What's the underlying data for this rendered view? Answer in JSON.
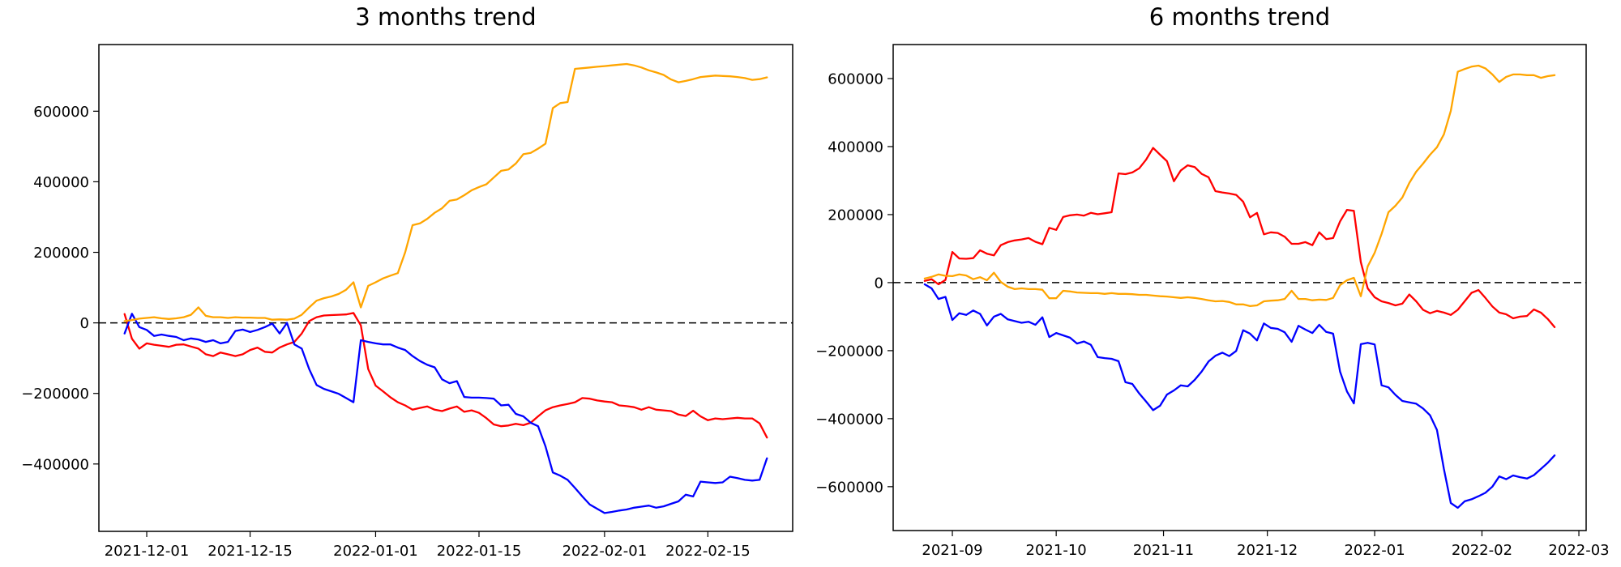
{
  "figure": {
    "background": "#ffffff",
    "text_color": "#000000"
  },
  "chart_data": [
    {
      "type": "line",
      "title": "3 months trend",
      "grid": false,
      "legend": null,
      "zero_line": {
        "style": "dashed",
        "color": "#000000",
        "y": 0
      },
      "ylim": [
        -591000,
        789000
      ],
      "y_ticks": [
        600000,
        400000,
        200000,
        0,
        -200000,
        -400000
      ],
      "x_ticks": [
        "2021-12-01",
        "2021-12-15",
        "2022-01-01",
        "2022-01-15",
        "2022-02-01",
        "2022-02-15"
      ],
      "x": [
        "2021-11-28",
        "2021-11-29",
        "2021-11-30",
        "2021-12-01",
        "2021-12-02",
        "2021-12-03",
        "2021-12-04",
        "2021-12-05",
        "2021-12-06",
        "2021-12-07",
        "2021-12-08",
        "2021-12-09",
        "2021-12-10",
        "2021-12-11",
        "2021-12-12",
        "2021-12-13",
        "2021-12-14",
        "2021-12-15",
        "2021-12-16",
        "2021-12-17",
        "2021-12-18",
        "2021-12-19",
        "2021-12-20",
        "2021-12-21",
        "2021-12-22",
        "2021-12-23",
        "2021-12-24",
        "2021-12-25",
        "2021-12-26",
        "2021-12-27",
        "2021-12-28",
        "2021-12-29",
        "2021-12-30",
        "2021-12-31",
        "2022-01-01",
        "2022-01-02",
        "2022-01-03",
        "2022-01-04",
        "2022-01-05",
        "2022-01-06",
        "2022-01-07",
        "2022-01-08",
        "2022-01-09",
        "2022-01-10",
        "2022-01-11",
        "2022-01-12",
        "2022-01-13",
        "2022-01-14",
        "2022-01-15",
        "2022-01-16",
        "2022-01-17",
        "2022-01-18",
        "2022-01-19",
        "2022-01-20",
        "2022-01-21",
        "2022-01-22",
        "2022-01-23",
        "2022-01-24",
        "2022-01-25",
        "2022-01-26",
        "2022-01-27",
        "2022-01-28",
        "2022-01-29",
        "2022-01-30",
        "2022-01-31",
        "2022-02-01",
        "2022-02-02",
        "2022-02-03",
        "2022-02-04",
        "2022-02-05",
        "2022-02-06",
        "2022-02-07",
        "2022-02-08",
        "2022-02-09",
        "2022-02-10",
        "2022-02-11",
        "2022-02-12",
        "2022-02-13",
        "2022-02-14",
        "2022-02-15",
        "2022-02-16",
        "2022-02-17",
        "2022-02-18",
        "2022-02-19",
        "2022-02-20",
        "2022-02-21",
        "2022-02-22",
        "2022-02-23"
      ],
      "series": [
        {
          "name": "red",
          "color": "#ff0000",
          "values": [
            25000,
            -45000,
            -73000,
            -58000,
            -62000,
            -65000,
            -68000,
            -62000,
            -61000,
            -67000,
            -73000,
            -89000,
            -94000,
            -84000,
            -89000,
            -94000,
            -89000,
            -77000,
            -70000,
            -82000,
            -84000,
            -70000,
            -61000,
            -54000,
            -30000,
            5000,
            16000,
            21000,
            22000,
            23000,
            24000,
            28000,
            -7000,
            -131000,
            -178000,
            -194000,
            -211000,
            -225000,
            -234000,
            -246000,
            -241000,
            -237000,
            -246000,
            -250000,
            -243000,
            -237000,
            -252000,
            -248000,
            -255000,
            -270000,
            -288000,
            -293000,
            -291000,
            -286000,
            -290000,
            -283000,
            -265000,
            -248000,
            -239000,
            -234000,
            -230000,
            -225000,
            -213000,
            -215000,
            -220000,
            -223000,
            -225000,
            -234000,
            -236000,
            -239000,
            -246000,
            -239000,
            -246000,
            -248000,
            -250000,
            -260000,
            -264000,
            -249000,
            -265000,
            -276000,
            -271000,
            -273000,
            -271000,
            -269000,
            -271000,
            -271000,
            -285000,
            -325000
          ]
        },
        {
          "name": "blue",
          "color": "#0000ff",
          "values": [
            -30000,
            26000,
            -12000,
            -20000,
            -37000,
            -33000,
            -37000,
            -40000,
            -49000,
            -44000,
            -47000,
            -54000,
            -49000,
            -58000,
            -54000,
            -23000,
            -19000,
            -26000,
            -20000,
            -12000,
            -2000,
            -30000,
            0,
            -61000,
            -73000,
            -131000,
            -176000,
            -187000,
            -194000,
            -201000,
            -213000,
            -225000,
            -49000,
            -54000,
            -58000,
            -61000,
            -61000,
            -70000,
            -77000,
            -94000,
            -108000,
            -119000,
            -126000,
            -160000,
            -171000,
            -165000,
            -210000,
            -212000,
            -212000,
            -213000,
            -215000,
            -234000,
            -232000,
            -258000,
            -265000,
            -283000,
            -293000,
            -350000,
            -424000,
            -433000,
            -445000,
            -468000,
            -492000,
            -515000,
            -527000,
            -539000,
            -536000,
            -532000,
            -529000,
            -524000,
            -521000,
            -518000,
            -524000,
            -520000,
            -513000,
            -506000,
            -487000,
            -492000,
            -450000,
            -452000,
            -454000,
            -452000,
            -436000,
            -440000,
            -445000,
            -447000,
            -445000,
            -384000
          ]
        },
        {
          "name": "orange",
          "color": "#ffa500",
          "values": [
            5000,
            8000,
            12000,
            14000,
            16000,
            13000,
            11000,
            13000,
            16000,
            23000,
            44000,
            20000,
            16000,
            16000,
            14000,
            16000,
            15000,
            15000,
            14000,
            14000,
            9000,
            10000,
            9000,
            12000,
            23000,
            44000,
            63000,
            70000,
            75000,
            82000,
            94000,
            115000,
            44000,
            105000,
            115000,
            126000,
            134000,
            141000,
            200000,
            277000,
            282000,
            295000,
            312000,
            325000,
            346000,
            350000,
            362000,
            376000,
            385000,
            393000,
            412000,
            431000,
            435000,
            452000,
            478000,
            482000,
            494000,
            508000,
            609000,
            623000,
            626000,
            720000,
            722000,
            724000,
            726000,
            728000,
            730000,
            732000,
            734000,
            730000,
            724000,
            716000,
            710000,
            703000,
            690000,
            682000,
            686000,
            691000,
            697000,
            699000,
            701000,
            700000,
            699000,
            697000,
            694000,
            689000,
            691000,
            696000
          ]
        }
      ]
    },
    {
      "type": "line",
      "title": "6 months trend",
      "grid": false,
      "legend": null,
      "zero_line": {
        "style": "dashed",
        "color": "#000000",
        "y": 0
      },
      "ylim": [
        -729000,
        700000
      ],
      "y_ticks": [
        600000,
        400000,
        200000,
        0,
        -200000,
        -400000,
        -600000
      ],
      "x_ticks": [
        "2021-09",
        "2021-10",
        "2021-11",
        "2021-12",
        "2022-01",
        "2022-02",
        "2022-03"
      ],
      "x": [
        "2021-08-24",
        "2021-08-26",
        "2021-08-28",
        "2021-08-30",
        "2021-09-01",
        "2021-09-03",
        "2021-09-05",
        "2021-09-07",
        "2021-09-09",
        "2021-09-11",
        "2021-09-13",
        "2021-09-15",
        "2021-09-17",
        "2021-09-19",
        "2021-09-21",
        "2021-09-23",
        "2021-09-25",
        "2021-09-27",
        "2021-09-29",
        "2021-10-01",
        "2021-10-03",
        "2021-10-05",
        "2021-10-07",
        "2021-10-09",
        "2021-10-11",
        "2021-10-13",
        "2021-10-15",
        "2021-10-17",
        "2021-10-19",
        "2021-10-21",
        "2021-10-23",
        "2021-10-25",
        "2021-10-27",
        "2021-10-29",
        "2021-10-31",
        "2021-11-02",
        "2021-11-04",
        "2021-11-06",
        "2021-11-08",
        "2021-11-10",
        "2021-11-12",
        "2021-11-14",
        "2021-11-16",
        "2021-11-18",
        "2021-11-20",
        "2021-11-22",
        "2021-11-24",
        "2021-11-26",
        "2021-11-28",
        "2021-11-30",
        "2021-12-02",
        "2021-12-04",
        "2021-12-06",
        "2021-12-08",
        "2021-12-10",
        "2021-12-12",
        "2021-12-14",
        "2021-12-16",
        "2021-12-18",
        "2021-12-20",
        "2021-12-22",
        "2021-12-24",
        "2021-12-26",
        "2021-12-28",
        "2021-12-30",
        "2022-01-01",
        "2022-01-03",
        "2022-01-05",
        "2022-01-07",
        "2022-01-09",
        "2022-01-11",
        "2022-01-13",
        "2022-01-15",
        "2022-01-17",
        "2022-01-19",
        "2022-01-21",
        "2022-01-23",
        "2022-01-25",
        "2022-01-27",
        "2022-01-29",
        "2022-01-31",
        "2022-02-02",
        "2022-02-04",
        "2022-02-06",
        "2022-02-08",
        "2022-02-10",
        "2022-02-12",
        "2022-02-14",
        "2022-02-16",
        "2022-02-18",
        "2022-02-20",
        "2022-02-22"
      ],
      "series": [
        {
          "name": "red",
          "color": "#ff0000",
          "values": [
            5000,
            10000,
            -5000,
            8000,
            90000,
            71000,
            70000,
            72000,
            95000,
            85000,
            80000,
            110000,
            119000,
            124000,
            127000,
            131000,
            120000,
            113000,
            161000,
            155000,
            193000,
            198000,
            200000,
            197000,
            205000,
            201000,
            204000,
            207000,
            321000,
            319000,
            324000,
            336000,
            362000,
            396000,
            376000,
            357000,
            298000,
            330000,
            345000,
            340000,
            320000,
            310000,
            269000,
            265000,
            262000,
            258000,
            238000,
            192000,
            205000,
            142000,
            148000,
            146000,
            135000,
            114000,
            114000,
            119000,
            110000,
            148000,
            128000,
            131000,
            180000,
            214000,
            211000,
            60000,
            -17000,
            -43000,
            -55000,
            -60000,
            -67000,
            -62000,
            -35000,
            -55000,
            -80000,
            -90000,
            -83000,
            -88000,
            -95000,
            -80000,
            -55000,
            -30000,
            -22000,
            -45000,
            -70000,
            -88000,
            -93000,
            -105000,
            -100000,
            -98000,
            -79000,
            -88000,
            -107000,
            -131000
          ]
        },
        {
          "name": "blue",
          "color": "#0000ff",
          "values": [
            -5000,
            -17000,
            -48000,
            -42000,
            -110000,
            -90000,
            -95000,
            -82000,
            -92000,
            -126000,
            -100000,
            -92000,
            -108000,
            -113000,
            -118000,
            -115000,
            -124000,
            -102000,
            -160000,
            -148000,
            -155000,
            -162000,
            -179000,
            -173000,
            -183000,
            -219000,
            -222000,
            -224000,
            -231000,
            -293000,
            -298000,
            -326000,
            -350000,
            -375000,
            -362000,
            -329000,
            -317000,
            -302000,
            -305000,
            -286000,
            -262000,
            -232000,
            -215000,
            -206000,
            -216000,
            -201000,
            -140000,
            -150000,
            -170000,
            -120000,
            -133000,
            -136000,
            -146000,
            -174000,
            -127000,
            -138000,
            -148000,
            -124000,
            -145000,
            -150000,
            -262000,
            -320000,
            -355000,
            -181000,
            -177000,
            -182000,
            -302000,
            -308000,
            -330000,
            -348000,
            -352000,
            -356000,
            -370000,
            -390000,
            -433000,
            -548000,
            -648000,
            -662000,
            -643000,
            -637000,
            -628000,
            -618000,
            -600000,
            -570000,
            -578000,
            -567000,
            -572000,
            -576000,
            -566000,
            -548000,
            -530000,
            -508000
          ]
        },
        {
          "name": "orange",
          "color": "#ffa500",
          "values": [
            12000,
            17000,
            24000,
            20000,
            19000,
            24000,
            21000,
            10000,
            16000,
            7000,
            29000,
            2000,
            -12000,
            -19000,
            -17000,
            -19000,
            -19000,
            -21000,
            -46000,
            -46000,
            -24000,
            -26000,
            -29000,
            -30000,
            -31000,
            -31000,
            -33000,
            -31000,
            -33000,
            -33000,
            -34000,
            -36000,
            -36000,
            -38000,
            -40000,
            -41000,
            -43000,
            -45000,
            -43000,
            -45000,
            -48000,
            -52000,
            -55000,
            -54000,
            -57000,
            -64000,
            -64000,
            -69000,
            -67000,
            -55000,
            -53000,
            -52000,
            -48000,
            -24000,
            -48000,
            -48000,
            -52000,
            -50000,
            -51000,
            -45000,
            -7000,
            7000,
            14000,
            -40000,
            48000,
            88000,
            143000,
            207000,
            226000,
            250000,
            293000,
            326000,
            350000,
            376000,
            398000,
            436000,
            505000,
            620000,
            628000,
            635000,
            638000,
            630000,
            612000,
            590000,
            605000,
            612000,
            612000,
            610000,
            610000,
            602000,
            607000,
            610000
          ]
        }
      ]
    }
  ]
}
